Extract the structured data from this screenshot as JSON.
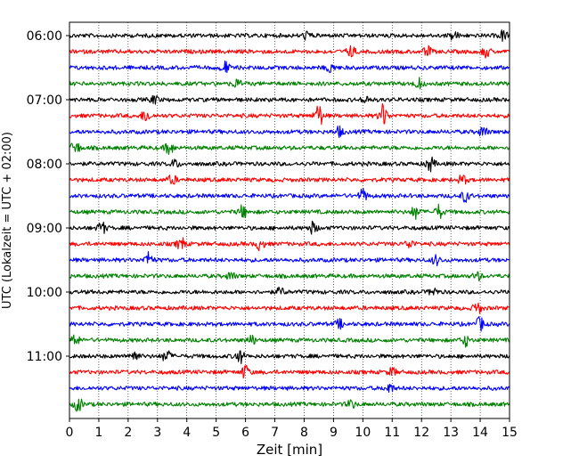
{
  "chart_data": {
    "type": "line",
    "title": "",
    "xlabel": "Zeit  [min]",
    "ylabel": "UTC (Lokalzeit = UTC + 02:00)",
    "xlim": [
      0,
      15
    ],
    "x_ticks": [
      "0",
      "1",
      "2",
      "3",
      "4",
      "5",
      "6",
      "7",
      "8",
      "9",
      "10",
      "11",
      "12",
      "13",
      "14",
      "15"
    ],
    "y_tick_labels": [
      "06:00",
      "07:00",
      "08:00",
      "09:00",
      "10:00",
      "11:00"
    ],
    "grid": "vertical dotted",
    "trace_interval_minutes": 15,
    "trace_count": 24,
    "trace_colors": [
      "#000000",
      "#ff0000",
      "#0000ff",
      "#008000"
    ],
    "series": [
      {
        "start": "06:00",
        "color": "#000000",
        "events": [
          [
            8.1,
            1.0
          ],
          [
            13.1,
            1.1
          ],
          [
            14.8,
            1.4
          ]
        ]
      },
      {
        "start": "06:15",
        "color": "#ff0000",
        "events": [
          [
            9.6,
            1.4
          ],
          [
            12.2,
            1.3
          ],
          [
            14.2,
            1.3
          ]
        ]
      },
      {
        "start": "06:30",
        "color": "#0000ff",
        "events": [
          [
            5.3,
            1.6
          ],
          [
            8.9,
            1.2
          ]
        ]
      },
      {
        "start": "06:45",
        "color": "#008000",
        "events": [
          [
            5.7,
            1.1
          ],
          [
            11.9,
            1.3
          ]
        ]
      },
      {
        "start": "07:00",
        "color": "#000000",
        "events": [
          [
            2.9,
            1.0
          ],
          [
            10.1,
            1.0
          ]
        ]
      },
      {
        "start": "07:15",
        "color": "#ff0000",
        "events": [
          [
            2.6,
            1.6
          ],
          [
            8.5,
            3.0
          ],
          [
            10.7,
            3.0
          ]
        ]
      },
      {
        "start": "07:30",
        "color": "#0000ff",
        "events": [
          [
            9.2,
            1.2
          ],
          [
            14.1,
            1.3
          ]
        ]
      },
      {
        "start": "07:45",
        "color": "#008000",
        "events": [
          [
            0.2,
            1.8
          ],
          [
            3.4,
            1.7
          ]
        ]
      },
      {
        "start": "08:00",
        "color": "#000000",
        "events": [
          [
            3.6,
            1.0
          ],
          [
            12.3,
            1.9
          ]
        ]
      },
      {
        "start": "08:15",
        "color": "#ff0000",
        "events": [
          [
            3.5,
            1.2
          ],
          [
            13.4,
            1.2
          ]
        ]
      },
      {
        "start": "08:30",
        "color": "#0000ff",
        "events": [
          [
            10.0,
            1.6
          ],
          [
            13.5,
            1.4
          ]
        ]
      },
      {
        "start": "08:45",
        "color": "#008000",
        "events": [
          [
            5.9,
            1.6
          ],
          [
            11.8,
            1.7
          ],
          [
            12.6,
            1.7
          ]
        ]
      },
      {
        "start": "09:00",
        "color": "#000000",
        "events": [
          [
            1.1,
            1.6
          ],
          [
            8.3,
            1.5
          ]
        ]
      },
      {
        "start": "09:15",
        "color": "#ff0000",
        "events": [
          [
            3.8,
            1.6
          ],
          [
            6.5,
            1.5
          ],
          [
            11.6,
            1.1
          ]
        ]
      },
      {
        "start": "09:30",
        "color": "#0000ff",
        "events": [
          [
            2.7,
            1.9
          ],
          [
            12.5,
            1.2
          ]
        ]
      },
      {
        "start": "09:45",
        "color": "#008000",
        "events": [
          [
            5.5,
            1.0
          ],
          [
            13.9,
            1.0
          ]
        ]
      },
      {
        "start": "10:00",
        "color": "#000000",
        "events": [
          [
            7.2,
            1.0
          ],
          [
            12.4,
            1.0
          ]
        ]
      },
      {
        "start": "10:15",
        "color": "#ff0000",
        "events": [
          [
            13.9,
            1.5
          ]
        ]
      },
      {
        "start": "10:30",
        "color": "#0000ff",
        "events": [
          [
            14.0,
            1.7
          ],
          [
            9.2,
            1.1
          ]
        ]
      },
      {
        "start": "10:45",
        "color": "#008000",
        "events": [
          [
            0.2,
            1.5
          ],
          [
            6.2,
            1.2
          ],
          [
            13.5,
            1.4
          ]
        ]
      },
      {
        "start": "11:00",
        "color": "#000000",
        "events": [
          [
            2.2,
            1.5
          ],
          [
            3.3,
            1.6
          ],
          [
            5.8,
            1.8
          ]
        ]
      },
      {
        "start": "11:15",
        "color": "#ff0000",
        "events": [
          [
            6.0,
            1.7
          ],
          [
            11.0,
            1.0
          ]
        ]
      },
      {
        "start": "11:30",
        "color": "#0000ff",
        "events": [
          [
            10.9,
            1.2
          ]
        ]
      },
      {
        "start": "11:45",
        "color": "#008000",
        "events": [
          [
            0.3,
            1.8
          ],
          [
            9.6,
            1.0
          ]
        ]
      }
    ]
  }
}
